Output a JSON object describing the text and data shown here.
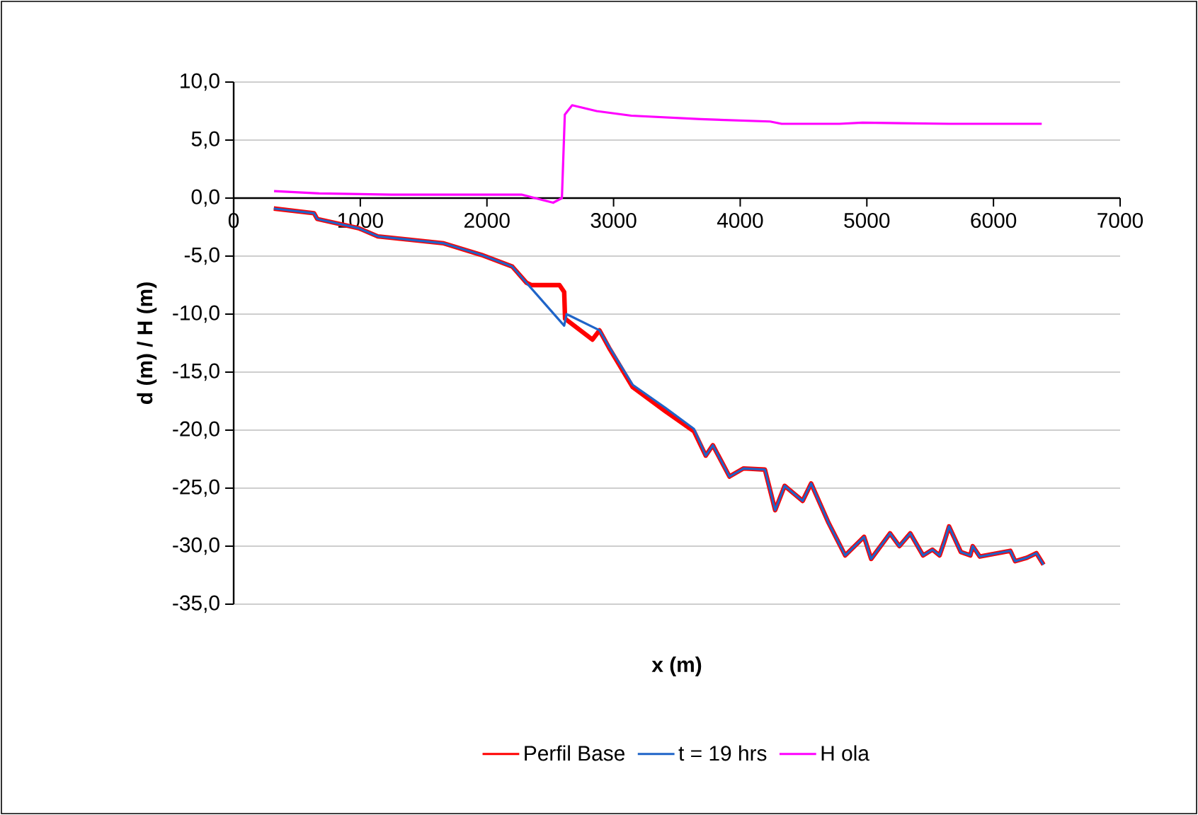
{
  "chart_data": {
    "type": "line",
    "xlabel": "x (m)",
    "ylabel": "d (m) / H (m)",
    "xlim": [
      0,
      7000
    ],
    "xticks": [
      0,
      1000,
      2000,
      3000,
      4000,
      5000,
      6000,
      7000
    ],
    "ylim": [
      -35,
      10
    ],
    "yticks": [
      {
        "value": 10,
        "label": "10,0"
      },
      {
        "value": 5,
        "label": "5,0"
      },
      {
        "value": 0,
        "label": "0,0"
      },
      {
        "value": -5,
        "label": "-5,0"
      },
      {
        "value": -10,
        "label": "-10,0"
      },
      {
        "value": -15,
        "label": "-15,0"
      },
      {
        "value": -20,
        "label": "-20,0"
      },
      {
        "value": -25,
        "label": "-25,0"
      },
      {
        "value": -30,
        "label": "-30,0"
      },
      {
        "value": -35,
        "label": "-35,0"
      }
    ],
    "grid": "y",
    "legend": "bottom",
    "marker": "none",
    "line_style": "solid",
    "series": [
      {
        "name": "Perfil Base",
        "color": "#ff0000",
        "x": [
          317,
          634,
          660,
          988,
          1138,
          1659,
          1957,
          2200,
          2312,
          2349,
          2573,
          2610,
          2617,
          2833,
          2889,
          2964,
          3151,
          3412,
          3635,
          3728,
          3784,
          3915,
          4027,
          4195,
          4276,
          4351,
          4493,
          4560,
          4698,
          4829,
          4978,
          5034,
          5183,
          5257,
          5343,
          5444,
          5518,
          5574,
          5612,
          5649,
          5742,
          5817,
          5836,
          5892,
          6133,
          6171,
          6264,
          6339,
          6395
        ],
        "values": [
          -0.9,
          -1.3,
          -1.8,
          -2.6,
          -3.3,
          -3.9,
          -4.9,
          -5.9,
          -7.3,
          -7.5,
          -7.5,
          -8.1,
          -10.4,
          -12.2,
          -11.4,
          -12.9,
          -16.3,
          -18.4,
          -20.1,
          -22.2,
          -21.3,
          -24.0,
          -23.3,
          -23.4,
          -26.9,
          -24.8,
          -26.1,
          -24.6,
          -28.0,
          -30.8,
          -29.2,
          -31.1,
          -28.9,
          -30.0,
          -28.9,
          -30.8,
          -30.3,
          -30.8,
          -29.6,
          -28.3,
          -30.5,
          -30.8,
          -30.0,
          -30.9,
          -30.4,
          -31.3,
          -31.0,
          -30.6,
          -31.6
        ]
      },
      {
        "name": "t = 19 hrs",
        "color": "#1f64c8",
        "x": [
          317,
          634,
          660,
          988,
          1138,
          1659,
          1957,
          2200,
          2312,
          2610,
          2629,
          2889,
          2964,
          3151,
          3412,
          3635,
          3728,
          3784,
          3915,
          4027,
          4195,
          4276,
          4351,
          4493,
          4560,
          4698,
          4829,
          4978,
          5034,
          5183,
          5257,
          5343,
          5444,
          5518,
          5574,
          5612,
          5649,
          5742,
          5817,
          5836,
          5892,
          6133,
          6171,
          6264,
          6339,
          6395
        ],
        "values": [
          -0.9,
          -1.3,
          -1.8,
          -2.6,
          -3.3,
          -3.9,
          -4.9,
          -5.9,
          -7.3,
          -11.0,
          -10.0,
          -11.4,
          -12.8,
          -16.1,
          -18.1,
          -19.9,
          -22.2,
          -21.3,
          -24.0,
          -23.3,
          -23.4,
          -26.9,
          -24.8,
          -26.1,
          -24.6,
          -28.0,
          -30.8,
          -29.2,
          -31.1,
          -28.9,
          -30.0,
          -28.9,
          -30.8,
          -30.3,
          -30.8,
          -29.6,
          -28.3,
          -30.5,
          -30.8,
          -30.0,
          -30.9,
          -30.4,
          -31.3,
          -31.0,
          -30.6,
          -31.6
        ]
      },
      {
        "name": "H ola",
        "color": "#ff00ff",
        "x": [
          319,
          675,
          1245,
          2273,
          2523,
          2592,
          2615,
          2673,
          2866,
          3140,
          3688,
          4236,
          4327,
          4784,
          4966,
          5651,
          6381
        ],
        "values": [
          0.6,
          0.4,
          0.3,
          0.3,
          -0.4,
          0.0,
          7.2,
          8.0,
          7.5,
          7.1,
          6.8,
          6.6,
          6.4,
          6.4,
          6.5,
          6.4,
          6.4
        ]
      }
    ]
  }
}
